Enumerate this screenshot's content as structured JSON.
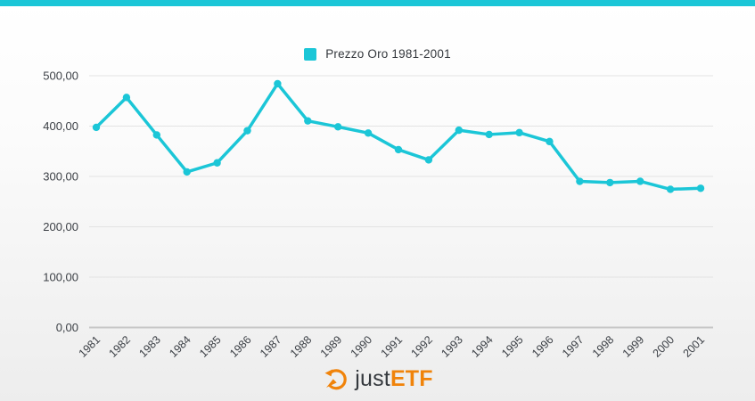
{
  "accent_color": "#1bc6d7",
  "background": {
    "top": "#ffffff",
    "bottom": "#ededed"
  },
  "legend": {
    "label": "Prezzo Oro 1981-2001",
    "swatch_color": "#1bc6d7"
  },
  "chart_data": {
    "type": "line",
    "title": "Prezzo Oro 1981-2001",
    "x": [
      1981,
      1982,
      1983,
      1984,
      1985,
      1986,
      1987,
      1988,
      1989,
      1990,
      1991,
      1992,
      1993,
      1994,
      1995,
      1996,
      1997,
      1998,
      1999,
      2000,
      2001
    ],
    "values": [
      397.5,
      456.9,
      382.4,
      309.0,
      327.0,
      390.9,
      484.1,
      410.3,
      398.6,
      386.2,
      353.2,
      332.9,
      391.8,
      383.3,
      387.0,
      369.3,
      290.2,
      287.8,
      290.3,
      274.5,
      276.5
    ],
    "ylim": [
      0,
      500
    ],
    "ytick_interval": 100,
    "ytick_labels": [
      "0,00",
      "100,00",
      "200,00",
      "300,00",
      "400,00",
      "500,00"
    ],
    "grid": true,
    "legend_position": "top-center",
    "line_color": "#1bc6d7",
    "marker": "circle",
    "gridline_color": "#e3e3e3",
    "axisline_color": "#c7c7c7",
    "tick_text_color": "#3c4046"
  },
  "footer": {
    "brand_prefix": "just",
    "brand_suffix": "ETF",
    "icon": "gauge-arrow-icon",
    "prefix_color": "#35393e",
    "suffix_color": "#f0830a"
  }
}
